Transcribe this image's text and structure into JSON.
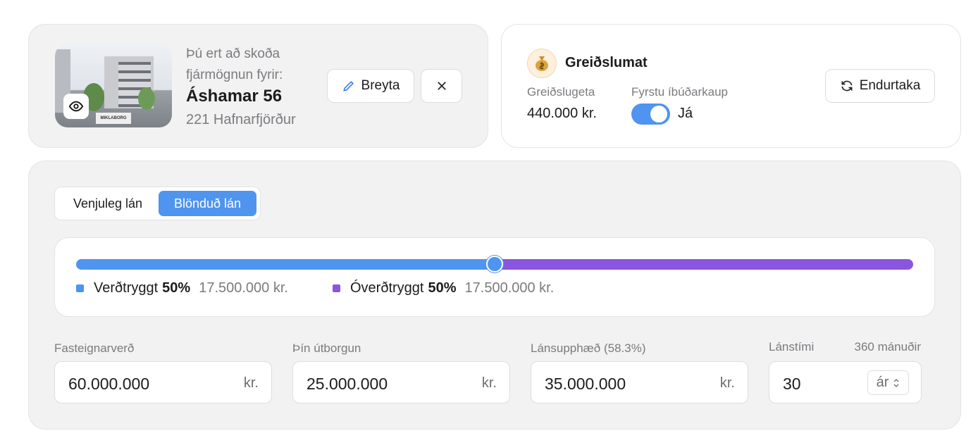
{
  "property": {
    "intro": "Þú ert að skoða fjármögnun fyrir:",
    "name": "Áshamar 56",
    "address": "221 Hafnarfjörður",
    "image_caption": "MIKLABORG"
  },
  "actions": {
    "edit": "Breyta"
  },
  "payment": {
    "title": "Greiðslumat",
    "capacity_label": "Greiðslugeta",
    "capacity_value": "440.000 kr.",
    "first_purchase_label": "Fyrstu íbúðarkaup",
    "first_purchase_value": "Já",
    "retake": "Endurtaka"
  },
  "tabs": [
    "Venjuleg lán",
    "Blönduð lán"
  ],
  "split": {
    "indexed": {
      "name": "Verðtryggt",
      "percent": {
        "value": 50,
        "label": "50%"
      },
      "amount": "17.500.000 kr."
    },
    "non_indexed": {
      "name": "Óverðtryggt",
      "percent": {
        "value": 50,
        "label": "50%"
      },
      "amount": "17.500.000 kr."
    }
  },
  "fields": [
    {
      "label": "Fasteignarverð",
      "value": "60.000.000",
      "unit": "kr."
    },
    {
      "label": "Þín útborgun",
      "value": "25.000.000",
      "unit": "kr."
    },
    {
      "label": "Lánsupphæð (58.3%)",
      "value": "35.000.000",
      "unit": "kr."
    },
    {
      "label": "Lánstími",
      "note": "360 mánuðir",
      "value": "30",
      "unit": "ár"
    }
  ]
}
